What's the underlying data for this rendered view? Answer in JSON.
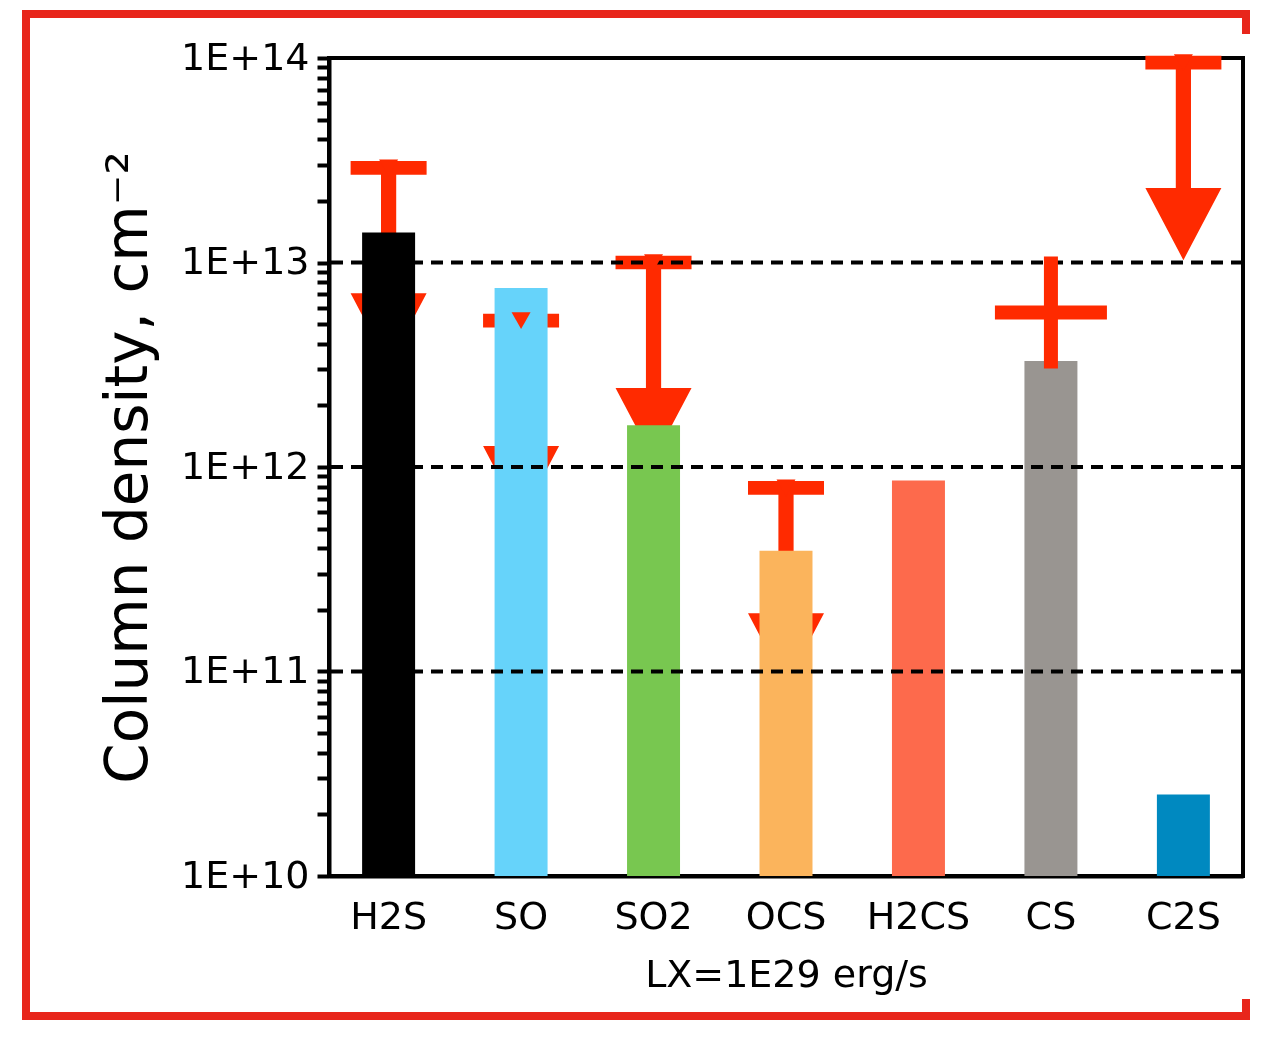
{
  "chart_data": {
    "type": "bar",
    "xlabel": "LX=1E29 erg/s",
    "ylabel": "Column density, cm⁻²",
    "categories": [
      "H2S",
      "SO",
      "SO2",
      "OCS",
      "H2CS",
      "CS",
      "C2S"
    ],
    "values": [
      14000000000000.0,
      7500000000000.0,
      1600000000000.0,
      390000000000.0,
      860000000000.0,
      3300000000000.0,
      25000000000.0
    ],
    "colors": [
      "#000000",
      "#66d3fa",
      "#78c750",
      "#fbb45c",
      "#fd6a4c",
      "#999591",
      "#0089c0"
    ],
    "series": [
      {
        "type": "scatter",
        "marker": "triangle",
        "color": "#ff2a00",
        "values": [
          29000000000000.0,
          5200000000000.0,
          10000000000000.0,
          790000000000.0,
          null,
          null,
          95000000000000.0
        ]
      },
      {
        "type": "scatter",
        "marker": "cross",
        "color": "#ff2a00",
        "values": [
          null,
          null,
          null,
          null,
          null,
          5700000000000.0,
          null
        ]
      }
    ],
    "log": true,
    "ylim": [
      10000000000.0,
      100000000000000.0
    ],
    "yticks": [
      {
        "value": 10000000000.0,
        "label": "1E+10"
      },
      {
        "value": 20000000000.0,
        "label": null
      },
      {
        "value": 30000000000.0,
        "label": null
      },
      {
        "value": 40000000000.0,
        "label": null
      },
      {
        "value": 50000000000.0,
        "label": null
      },
      {
        "value": 60000000000.0,
        "label": null
      },
      {
        "value": 70000000000.0,
        "label": null
      },
      {
        "value": 80000000000.0,
        "label": null
      },
      {
        "value": 90000000000.0,
        "label": null
      },
      {
        "value": 100000000000.0,
        "label": "1E+11"
      },
      {
        "value": 200000000000.0,
        "label": null
      },
      {
        "value": 300000000000.0,
        "label": null
      },
      {
        "value": 400000000000.0,
        "label": null
      },
      {
        "value": 500000000000.0,
        "label": null
      },
      {
        "value": 600000000000.0,
        "label": null
      },
      {
        "value": 700000000000.0,
        "label": null
      },
      {
        "value": 800000000000.0,
        "label": null
      },
      {
        "value": 900000000000.0,
        "label": null
      },
      {
        "value": 1000000000000.0,
        "label": "1E+12"
      },
      {
        "value": 2000000000000.0,
        "label": null
      },
      {
        "value": 3000000000000.0,
        "label": null
      },
      {
        "value": 4000000000000.0,
        "label": null
      },
      {
        "value": 5000000000000.0,
        "label": null
      },
      {
        "value": 6000000000000.0,
        "label": null
      },
      {
        "value": 7000000000000.0,
        "label": null
      },
      {
        "value": 8000000000000.0,
        "label": null
      },
      {
        "value": 9000000000000.0,
        "label": null
      },
      {
        "value": 10000000000000.0,
        "label": "1E+13"
      },
      {
        "value": 20000000000000.0,
        "label": null
      },
      {
        "value": 30000000000000.0,
        "label": null
      },
      {
        "value": 40000000000000.0,
        "label": null
      },
      {
        "value": 50000000000000.0,
        "label": null
      },
      {
        "value": 60000000000000.0,
        "label": null
      },
      {
        "value": 70000000000000.0,
        "label": null
      },
      {
        "value": 80000000000000.0,
        "label": null
      },
      {
        "value": 90000000000000.0,
        "label": null
      },
      {
        "value": 100000000000000.0,
        "label": "1E+14"
      }
    ],
    "ref_lines": [
      {
        "axis": "y",
        "value": 100000000000.0,
        "color": "#000000",
        "line_style": "dashed"
      },
      {
        "axis": "y",
        "value": 1000000000000.0,
        "color": "#000000",
        "line_style": "dashed"
      },
      {
        "axis": "y",
        "value": 10000000000000.0,
        "color": "#000000",
        "line_style": "dashed"
      }
    ],
    "grid": false,
    "legend": false
  }
}
